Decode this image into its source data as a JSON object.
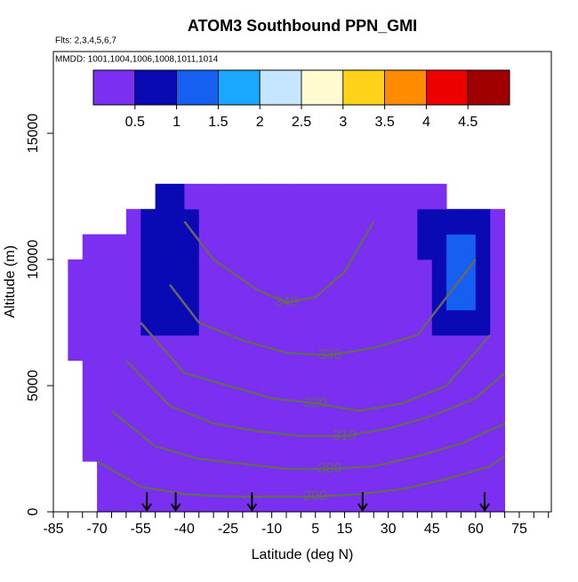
{
  "chart_data": {
    "type": "heatmap",
    "title": "ATOM3 Southbound PPN_GMI",
    "flights": "Flts: 2,3,4,5,6,7",
    "dates": "MMDD: 1001,1004,1006,1008,1011,1014",
    "x_label": "Latitude (deg N)",
    "y_label": "Altitude (m)",
    "xlim": [
      -85,
      86
    ],
    "ylim": [
      0,
      18240
    ],
    "xticks": [
      -85,
      -70,
      -55,
      -40,
      -25,
      -10,
      5,
      15,
      30,
      45,
      60,
      75
    ],
    "xminor_ticks": [
      -80,
      -75,
      -65,
      -60,
      -50,
      -45,
      -35,
      -30,
      -20,
      -15,
      -5,
      0,
      10,
      20,
      25,
      35,
      40,
      50,
      55,
      65,
      70,
      80,
      85
    ],
    "yticks": [
      0,
      5000,
      10000,
      15000
    ],
    "x_edges": [
      -80,
      -75,
      -70,
      -65,
      -60,
      -55,
      -50,
      -45,
      -40,
      -35,
      -30,
      -25,
      -20,
      -15,
      -10,
      -5,
      0,
      5,
      10,
      15,
      20,
      25,
      30,
      35,
      40,
      45,
      50,
      55,
      60,
      65,
      70
    ],
    "y_edges": [
      0,
      1000,
      2000,
      3000,
      4000,
      5000,
      6000,
      7000,
      8000,
      9000,
      10000,
      11000,
      12000,
      13000
    ],
    "z": [
      [
        null,
        null,
        0.25,
        0.25,
        0.25,
        0.25,
        0.25,
        0.25,
        0.25,
        0.25,
        0.25,
        0.25,
        0.25,
        0.25,
        0.25,
        0.25,
        0.25,
        0.25,
        0.25,
        0.25,
        0.25,
        0.25,
        0.25,
        0.25,
        0.25,
        0.25,
        0.25,
        0.25,
        0.25,
        0.25
      ],
      [
        null,
        null,
        0.25,
        0.25,
        0.25,
        0.25,
        0.25,
        0.25,
        0.25,
        0.25,
        0.25,
        0.25,
        0.25,
        0.25,
        0.25,
        0.25,
        0.25,
        0.25,
        0.25,
        0.25,
        0.25,
        0.25,
        0.25,
        0.25,
        0.25,
        0.25,
        0.25,
        0.25,
        0.25,
        0.25
      ],
      [
        null,
        0.25,
        0.25,
        0.25,
        0.25,
        0.25,
        0.25,
        0.25,
        0.25,
        0.25,
        0.25,
        0.25,
        0.25,
        0.25,
        0.25,
        0.25,
        0.25,
        0.25,
        0.25,
        0.25,
        0.25,
        0.25,
        0.25,
        0.25,
        0.25,
        0.25,
        0.25,
        0.25,
        0.25,
        0.25
      ],
      [
        null,
        0.25,
        0.25,
        0.25,
        0.25,
        0.25,
        0.25,
        0.25,
        0.25,
        0.25,
        0.25,
        0.25,
        0.25,
        0.25,
        0.25,
        0.25,
        0.25,
        0.25,
        0.25,
        0.25,
        0.25,
        0.25,
        0.25,
        0.25,
        0.25,
        0.25,
        0.25,
        0.25,
        0.25,
        0.25
      ],
      [
        null,
        0.25,
        0.25,
        0.25,
        0.25,
        0.25,
        0.25,
        0.25,
        0.25,
        0.25,
        0.25,
        0.25,
        0.25,
        0.25,
        0.25,
        0.25,
        0.25,
        0.25,
        0.25,
        0.25,
        0.25,
        0.25,
        0.25,
        0.25,
        0.25,
        0.25,
        0.25,
        0.25,
        0.25,
        0.25
      ],
      [
        null,
        0.25,
        0.25,
        0.25,
        0.25,
        0.25,
        0.25,
        0.25,
        0.25,
        0.25,
        0.25,
        0.25,
        0.25,
        0.25,
        0.25,
        0.25,
        0.25,
        0.25,
        0.25,
        0.25,
        0.25,
        0.25,
        0.25,
        0.25,
        0.25,
        0.25,
        0.25,
        0.25,
        0.25,
        0.25
      ],
      [
        0.25,
        0.25,
        0.25,
        0.25,
        0.25,
        0.25,
        0.25,
        0.25,
        0.25,
        0.25,
        0.25,
        0.25,
        0.25,
        0.25,
        0.25,
        0.25,
        0.25,
        0.25,
        0.25,
        0.25,
        0.25,
        0.25,
        0.25,
        0.25,
        0.25,
        0.25,
        0.25,
        0.25,
        0.25,
        0.25
      ],
      [
        0.25,
        0.25,
        0.25,
        0.25,
        0.25,
        0.75,
        0.75,
        0.75,
        0.75,
        0.25,
        0.25,
        0.25,
        0.25,
        0.25,
        0.25,
        0.25,
        0.25,
        0.25,
        0.25,
        0.25,
        0.25,
        0.25,
        0.25,
        0.25,
        0.25,
        0.75,
        0.75,
        0.75,
        0.75,
        0.25
      ],
      [
        0.25,
        0.25,
        0.25,
        0.25,
        0.25,
        0.75,
        0.75,
        0.75,
        0.75,
        0.25,
        0.25,
        0.25,
        0.25,
        0.25,
        0.25,
        0.25,
        0.25,
        0.25,
        0.25,
        0.25,
        0.25,
        0.25,
        0.25,
        0.25,
        0.25,
        0.75,
        1.3,
        1.3,
        0.75,
        0.25
      ],
      [
        0.25,
        0.25,
        0.25,
        0.25,
        0.25,
        0.75,
        0.75,
        0.75,
        0.75,
        0.25,
        0.25,
        0.25,
        0.25,
        0.25,
        0.25,
        0.25,
        0.25,
        0.25,
        0.25,
        0.25,
        0.25,
        0.25,
        0.25,
        0.25,
        0.25,
        0.75,
        1.3,
        1.3,
        0.75,
        0.25
      ],
      [
        null,
        0.25,
        0.25,
        0.25,
        0.25,
        0.75,
        0.75,
        0.75,
        0.75,
        0.25,
        0.25,
        0.25,
        0.25,
        0.25,
        0.25,
        0.25,
        0.25,
        0.25,
        0.25,
        0.25,
        0.25,
        0.25,
        0.25,
        0.25,
        0.75,
        0.75,
        1.3,
        1.3,
        0.75,
        0.25
      ],
      [
        null,
        null,
        null,
        null,
        0.25,
        0.75,
        0.75,
        0.75,
        0.75,
        0.25,
        0.25,
        0.25,
        0.25,
        0.25,
        0.25,
        0.25,
        0.25,
        0.25,
        0.25,
        0.25,
        0.25,
        0.25,
        0.25,
        0.25,
        0.75,
        0.75,
        0.75,
        0.75,
        0.75,
        0.25
      ],
      [
        null,
        null,
        null,
        null,
        null,
        null,
        0.75,
        0.75,
        0.25,
        0.25,
        0.25,
        0.25,
        0.25,
        0.25,
        0.25,
        0.25,
        0.25,
        0.25,
        0.25,
        0.25,
        0.25,
        0.25,
        0.25,
        0.25,
        0.25,
        0.25,
        null,
        null,
        null,
        null
      ]
    ],
    "colorbar": {
      "range": [
        0,
        5
      ],
      "ticks": [
        0.5,
        1.0,
        1.5,
        2.0,
        2.5,
        3.0,
        3.5,
        4.0,
        4.5
      ],
      "colors": [
        "#7b2ff0",
        "#0a0ab4",
        "#1560f0",
        "#1aa8ff",
        "#c6e6ff",
        "#fffbd0",
        "#ffd21a",
        "#ff8c00",
        "#ee0000",
        "#a00000"
      ]
    },
    "contour_color": "#666666",
    "contours": [
      {
        "level": 340,
        "x": [
          -40,
          -30,
          -15,
          -5,
          5,
          15,
          25
        ],
        "y": [
          11500,
          10000,
          8800,
          8300,
          8500,
          9500,
          11500
        ]
      },
      {
        "level": 330,
        "x": [
          -45,
          -35,
          -20,
          -5,
          10,
          25,
          40,
          50,
          60
        ],
        "y": [
          9000,
          7500,
          6800,
          6300,
          6200,
          6500,
          7000,
          8500,
          10000
        ]
      },
      {
        "level": 320,
        "x": [
          -55,
          -40,
          -25,
          -10,
          5,
          20,
          35,
          50,
          65
        ],
        "y": [
          7500,
          5500,
          5000,
          4500,
          4300,
          4000,
          4300,
          5000,
          7000
        ]
      },
      {
        "level": 310,
        "x": [
          -60,
          -45,
          -30,
          -15,
          0,
          15,
          30,
          45,
          60,
          70
        ],
        "y": [
          6000,
          4200,
          3500,
          3200,
          3000,
          3000,
          3300,
          3800,
          4500,
          5500
        ]
      },
      {
        "level": 300,
        "x": [
          -65,
          -50,
          -35,
          -20,
          -5,
          10,
          25,
          40,
          55,
          70
        ],
        "y": [
          4000,
          2600,
          2100,
          1900,
          1700,
          1700,
          1800,
          2200,
          2700,
          3500
        ]
      },
      {
        "level": 290,
        "x": [
          -70,
          -55,
          -40,
          -25,
          -10,
          5,
          20,
          35,
          50,
          65,
          70
        ],
        "y": [
          2000,
          1000,
          700,
          600,
          600,
          600,
          700,
          900,
          1300,
          1800,
          2200
        ]
      }
    ],
    "markers_x": [
      -52.9,
      -43,
      -16.8,
      21.2,
      63.1
    ]
  }
}
